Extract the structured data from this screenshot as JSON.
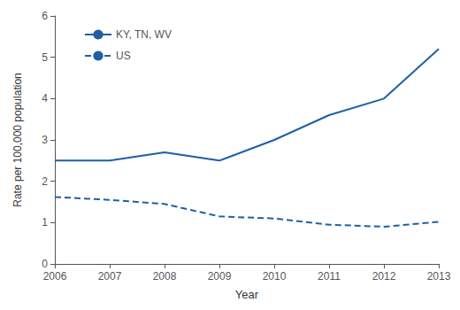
{
  "chart_data": {
    "type": "line",
    "xlabel": "Year",
    "ylabel": "Rate per 100,000 population",
    "x": [
      2006,
      2007,
      2008,
      2009,
      2010,
      2011,
      2012,
      2013
    ],
    "series": [
      {
        "name": "KY, TN, WV",
        "color": "#1F5FA6",
        "line_style": "solid",
        "values": [
          2.5,
          2.5,
          2.7,
          2.5,
          3.0,
          3.6,
          4.0,
          5.2
        ]
      },
      {
        "name": "US",
        "color": "#1F5FA6",
        "line_style": "dashed",
        "values": [
          1.62,
          1.55,
          1.45,
          1.15,
          1.1,
          0.95,
          0.9,
          1.02
        ]
      }
    ],
    "xlim": [
      2006,
      2013
    ],
    "ylim": [
      0,
      6
    ],
    "xticks": [
      2006,
      2007,
      2008,
      2009,
      2010,
      2011,
      2012,
      2013
    ],
    "yticks": [
      0,
      1,
      2,
      3,
      4,
      5,
      6
    ],
    "grid": false,
    "legend": "upper left"
  }
}
